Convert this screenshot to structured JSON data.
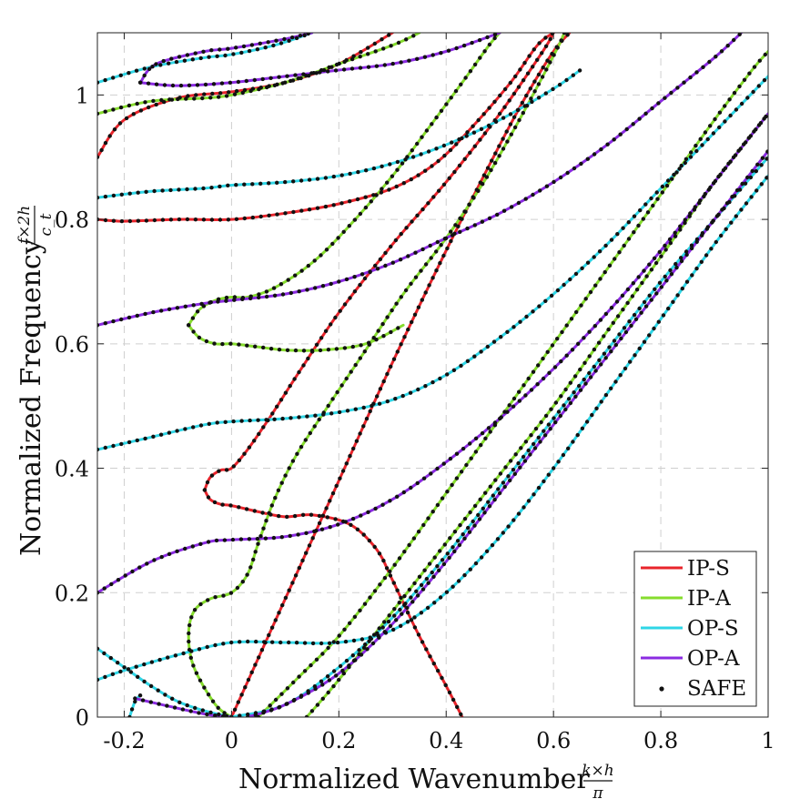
{
  "chart_data": {
    "type": "line",
    "title": "",
    "xlabel": "Normalized Wavenumber",
    "xlabel_math": {
      "numerator": "k×h",
      "denominator": "π"
    },
    "ylabel": "Normalized Frequency",
    "ylabel_math": {
      "numerator": "f×2h",
      "denominator": "c_t"
    },
    "xlim": [
      -0.25,
      1.0
    ],
    "ylim": [
      0,
      1.1
    ],
    "xticks": [
      -0.2,
      0,
      0.2,
      0.4,
      0.6,
      0.8,
      1
    ],
    "xtick_labels": [
      "-0.2",
      "0",
      "0.2",
      "0.4",
      "0.6",
      "0.8",
      "1"
    ],
    "yticks": [
      0,
      0.2,
      0.4,
      0.6,
      0.8,
      1
    ],
    "ytick_labels": [
      "0",
      "0.2",
      "0.4",
      "0.6",
      "0.8",
      "1"
    ],
    "grid": true,
    "grid_style": "dashed",
    "legend_position": "bottom-right",
    "series": [
      {
        "name": "IP-S",
        "color": "#e8242b",
        "curves": [
          [
            [
              0,
              0
            ],
            [
              0.1,
              0.19
            ],
            [
              0.2,
              0.38
            ],
            [
              0.3,
              0.57
            ],
            [
              0.4,
              0.75
            ],
            [
              0.5,
              0.92
            ],
            [
              0.55,
              1.0
            ],
            [
              0.6,
              1.07
            ],
            [
              0.63,
              1.1
            ]
          ],
          [
            [
              -0.05,
              0.365
            ],
            [
              -0.04,
              0.385
            ],
            [
              -0.02,
              0.397
            ],
            [
              0,
              0.4
            ],
            [
              0.03,
              0.43
            ],
            [
              0.07,
              0.48
            ],
            [
              0.13,
              0.56
            ],
            [
              0.2,
              0.65
            ],
            [
              0.3,
              0.76
            ],
            [
              0.4,
              0.86
            ],
            [
              0.5,
              0.97
            ],
            [
              0.58,
              1.07
            ],
            [
              0.6,
              1.1
            ]
          ],
          [
            [
              -0.05,
              0.365
            ],
            [
              -0.04,
              0.35
            ],
            [
              -0.02,
              0.342
            ],
            [
              0,
              0.34
            ],
            [
              0.05,
              0.33
            ],
            [
              0.1,
              0.322
            ],
            [
              0.15,
              0.325
            ],
            [
              0.22,
              0.31
            ],
            [
              0.27,
              0.27
            ],
            [
              0.3,
              0.22
            ],
            [
              0.35,
              0.13
            ],
            [
              0.4,
              0.05
            ],
            [
              0.43,
              0.0
            ]
          ],
          [
            [
              -0.25,
              0.8
            ],
            [
              -0.2,
              0.797
            ],
            [
              -0.1,
              0.8
            ],
            [
              0,
              0.8
            ],
            [
              0.1,
              0.81
            ],
            [
              0.2,
              0.825
            ],
            [
              0.3,
              0.85
            ],
            [
              0.38,
              0.89
            ],
            [
              0.45,
              0.95
            ],
            [
              0.52,
              1.02
            ],
            [
              0.57,
              1.08
            ],
            [
              0.6,
              1.1
            ]
          ],
          [
            [
              -0.25,
              0.9
            ],
            [
              -0.2,
              0.96
            ],
            [
              -0.1,
              0.995
            ],
            [
              0,
              1.005
            ],
            [
              0.1,
              1.02
            ],
            [
              0.2,
              1.05
            ],
            [
              0.3,
              1.1
            ]
          ]
        ]
      },
      {
        "name": "IP-A",
        "color": "#86dc2e",
        "curves": [
          [
            [
              0,
              0
            ],
            [
              -0.03,
              0.02
            ],
            [
              -0.07,
              0.08
            ],
            [
              -0.08,
              0.13
            ],
            [
              -0.07,
              0.17
            ],
            [
              -0.04,
              0.19
            ],
            [
              0,
              0.2
            ],
            [
              0.03,
              0.23
            ],
            [
              0.05,
              0.28
            ],
            [
              0.08,
              0.35
            ],
            [
              0.12,
              0.42
            ],
            [
              0.18,
              0.5
            ],
            [
              0.25,
              0.59
            ],
            [
              0.32,
              0.68
            ],
            [
              0.4,
              0.77
            ],
            [
              0.47,
              0.86
            ],
            [
              0.53,
              0.95
            ],
            [
              0.58,
              1.03
            ],
            [
              0.61,
              1.08
            ],
            [
              0.62,
              1.1
            ]
          ],
          [
            [
              0.05,
              0
            ],
            [
              0.12,
              0.06
            ],
            [
              0.2,
              0.13
            ],
            [
              0.3,
              0.24
            ],
            [
              0.4,
              0.36
            ],
            [
              0.5,
              0.48
            ],
            [
              0.6,
              0.6
            ],
            [
              0.7,
              0.72
            ],
            [
              0.8,
              0.84
            ],
            [
              0.9,
              0.96
            ],
            [
              0.97,
              1.04
            ],
            [
              1.0,
              1.07
            ]
          ],
          [
            [
              0.14,
              0
            ],
            [
              0.2,
              0.06
            ],
            [
              0.3,
              0.17
            ],
            [
              0.4,
              0.28
            ],
            [
              0.5,
              0.39
            ],
            [
              0.6,
              0.5
            ],
            [
              0.7,
              0.62
            ],
            [
              0.8,
              0.74
            ],
            [
              0.9,
              0.86
            ],
            [
              1.0,
              0.97
            ]
          ],
          [
            [
              -0.08,
              0.63
            ],
            [
              -0.06,
              0.655
            ],
            [
              -0.03,
              0.67
            ],
            [
              0,
              0.675
            ],
            [
              0.03,
              0.675
            ],
            [
              0.08,
              0.69
            ],
            [
              0.15,
              0.73
            ],
            [
              0.22,
              0.79
            ],
            [
              0.3,
              0.87
            ],
            [
              0.37,
              0.95
            ],
            [
              0.43,
              1.02
            ],
            [
              0.48,
              1.08
            ],
            [
              0.5,
              1.1
            ]
          ],
          [
            [
              -0.08,
              0.63
            ],
            [
              -0.06,
              0.61
            ],
            [
              -0.03,
              0.6
            ],
            [
              0,
              0.6
            ],
            [
              0.05,
              0.595
            ],
            [
              0.1,
              0.59
            ],
            [
              0.17,
              0.59
            ],
            [
              0.25,
              0.6
            ],
            [
              0.32,
              0.63
            ]
          ],
          [
            [
              -0.25,
              0.97
            ],
            [
              -0.15,
              0.99
            ],
            [
              -0.05,
              0.995
            ],
            [
              0,
              1.0
            ],
            [
              0.1,
              1.02
            ],
            [
              0.2,
              1.05
            ],
            [
              0.3,
              1.08
            ],
            [
              0.35,
              1.1
            ]
          ]
        ]
      },
      {
        "name": "OP-S",
        "color": "#2fd6e6",
        "curves": [
          [
            [
              -0.25,
              0.11
            ],
            [
              -0.2,
              0.08
            ],
            [
              -0.15,
              0.05
            ],
            [
              -0.1,
              0.025
            ],
            [
              -0.05,
              0.01
            ],
            [
              0,
              0
            ]
          ],
          [
            [
              -0.19,
              0
            ],
            [
              -0.18,
              0.025
            ],
            [
              -0.17,
              0.035
            ]
          ],
          [
            [
              -0.25,
              0.06
            ],
            [
              -0.2,
              0.075
            ],
            [
              -0.1,
              0.1
            ],
            [
              0,
              0.12
            ],
            [
              0.1,
              0.12
            ],
            [
              0.2,
              0.12
            ],
            [
              0.3,
              0.14
            ],
            [
              0.4,
              0.2
            ],
            [
              0.5,
              0.29
            ],
            [
              0.6,
              0.4
            ],
            [
              0.7,
              0.52
            ],
            [
              0.8,
              0.64
            ],
            [
              0.9,
              0.76
            ],
            [
              1.0,
              0.87
            ]
          ],
          [
            [
              0.0,
              0
            ],
            [
              0.1,
              0.02
            ],
            [
              0.2,
              0.08
            ],
            [
              0.3,
              0.16
            ],
            [
              0.4,
              0.26
            ],
            [
              0.5,
              0.37
            ],
            [
              0.6,
              0.48
            ],
            [
              0.7,
              0.59
            ],
            [
              0.8,
              0.7
            ],
            [
              0.9,
              0.8
            ],
            [
              1.0,
              0.9
            ]
          ],
          [
            [
              -0.25,
              0.43
            ],
            [
              -0.15,
              0.45
            ],
            [
              -0.05,
              0.47
            ],
            [
              0,
              0.475
            ],
            [
              0.1,
              0.48
            ],
            [
              0.2,
              0.49
            ],
            [
              0.3,
              0.51
            ],
            [
              0.4,
              0.55
            ],
            [
              0.5,
              0.61
            ],
            [
              0.6,
              0.68
            ],
            [
              0.7,
              0.76
            ],
            [
              0.8,
              0.85
            ],
            [
              0.9,
              0.94
            ],
            [
              1.0,
              1.03
            ]
          ],
          [
            [
              -0.25,
              0.835
            ],
            [
              -0.15,
              0.845
            ],
            [
              -0.05,
              0.85
            ],
            [
              0,
              0.855
            ],
            [
              0.1,
              0.86
            ],
            [
              0.2,
              0.87
            ],
            [
              0.3,
              0.89
            ],
            [
              0.4,
              0.92
            ],
            [
              0.5,
              0.96
            ],
            [
              0.6,
              1.01
            ],
            [
              0.65,
              1.04
            ]
          ],
          [
            [
              -0.25,
              1.02
            ],
            [
              -0.15,
              1.045
            ],
            [
              -0.05,
              1.06
            ],
            [
              0,
              1.065
            ],
            [
              0.08,
              1.08
            ],
            [
              0.15,
              1.1
            ]
          ]
        ]
      },
      {
        "name": "OP-A",
        "color": "#8b2be2",
        "curves": [
          [
            [
              -0.18,
              0.03
            ],
            [
              -0.12,
              0.018
            ],
            [
              -0.05,
              0.005
            ],
            [
              0,
              0
            ]
          ],
          [
            [
              0.03,
              0
            ],
            [
              0.1,
              0.02
            ],
            [
              0.2,
              0.07
            ],
            [
              0.3,
              0.15
            ],
            [
              0.4,
              0.25
            ],
            [
              0.5,
              0.36
            ],
            [
              0.6,
              0.47
            ],
            [
              0.7,
              0.58
            ],
            [
              0.8,
              0.69
            ],
            [
              0.9,
              0.8
            ],
            [
              1.0,
              0.91
            ]
          ],
          [
            [
              -0.25,
              0.2
            ],
            [
              -0.15,
              0.25
            ],
            [
              -0.05,
              0.28
            ],
            [
              0,
              0.285
            ],
            [
              0.1,
              0.29
            ],
            [
              0.2,
              0.31
            ],
            [
              0.3,
              0.35
            ],
            [
              0.4,
              0.41
            ],
            [
              0.5,
              0.48
            ],
            [
              0.6,
              0.56
            ],
            [
              0.7,
              0.65
            ],
            [
              0.8,
              0.75
            ],
            [
              0.9,
              0.86
            ],
            [
              1.0,
              0.97
            ]
          ],
          [
            [
              -0.25,
              0.63
            ],
            [
              -0.15,
              0.65
            ],
            [
              -0.05,
              0.665
            ],
            [
              0,
              0.67
            ],
            [
              0.1,
              0.68
            ],
            [
              0.2,
              0.7
            ],
            [
              0.3,
              0.73
            ],
            [
              0.4,
              0.77
            ],
            [
              0.5,
              0.81
            ],
            [
              0.6,
              0.86
            ],
            [
              0.7,
              0.92
            ],
            [
              0.8,
              0.99
            ],
            [
              0.9,
              1.06
            ],
            [
              0.95,
              1.1
            ]
          ],
          [
            [
              -0.17,
              1.02
            ],
            [
              -0.1,
              1.015
            ],
            [
              0,
              1.02
            ],
            [
              0.1,
              1.03
            ],
            [
              0.2,
              1.04
            ],
            [
              0.3,
              1.05
            ],
            [
              0.4,
              1.07
            ],
            [
              0.5,
              1.1
            ]
          ],
          [
            [
              -0.17,
              1.02
            ],
            [
              -0.14,
              1.05
            ],
            [
              -0.05,
              1.07
            ],
            [
              0,
              1.075
            ],
            [
              0.1,
              1.09
            ],
            [
              0.15,
              1.1
            ]
          ]
        ]
      }
    ],
    "markers": {
      "name": "SAFE",
      "color": "#111111",
      "style": "dots"
    }
  }
}
